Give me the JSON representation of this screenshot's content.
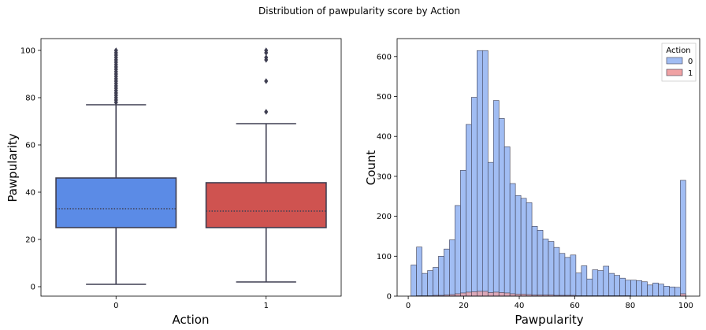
{
  "suptitle": "Distribution of pawpularity score by Action",
  "colors": {
    "box_0": "#5b8be6",
    "box_1": "#cf5350",
    "hist_0": "#a1bdf3",
    "hist_1": "#f0a2a4",
    "edge": "#3f3f52"
  },
  "chart_data": [
    {
      "type": "box",
      "xlabel": "Action",
      "ylabel": "Pawpularity",
      "categories": [
        "0",
        "1"
      ],
      "ylim": [
        -4,
        105
      ],
      "yticks": [
        0,
        20,
        40,
        60,
        80,
        100
      ],
      "boxes": [
        {
          "name": "0",
          "whisker_low": 1,
          "q1": 25,
          "median": 33,
          "q3": 46,
          "whisker_high": 77,
          "outliers": [
            78,
            79,
            80,
            81,
            82,
            83,
            84,
            85,
            86,
            87,
            88,
            89,
            90,
            91,
            92,
            93,
            94,
            95,
            96,
            97,
            98,
            99,
            100
          ]
        },
        {
          "name": "1",
          "whisker_low": 2,
          "q1": 25,
          "median": 32,
          "q3": 44,
          "whisker_high": 69,
          "outliers": [
            74,
            87,
            96,
            97,
            99,
            100
          ]
        }
      ]
    },
    {
      "type": "histogram",
      "xlabel": "Pawpularity",
      "ylabel": "Count",
      "xlim": [
        -4,
        105
      ],
      "ylim": [
        0,
        645
      ],
      "xticks": [
        0,
        20,
        40,
        60,
        80,
        100
      ],
      "yticks": [
        0,
        100,
        200,
        300,
        400,
        500,
        600
      ],
      "bin_start": 1,
      "bin_width": 1.98,
      "legend": {
        "title": "Action",
        "location": "upper right",
        "entries": [
          "0",
          "1"
        ]
      },
      "series": [
        {
          "name": "0",
          "counts": [
            78,
            123,
            57,
            64,
            72,
            100,
            118,
            141,
            227,
            315,
            430,
            498,
            615,
            615,
            335,
            490,
            445,
            374,
            282,
            252,
            245,
            234,
            175,
            165,
            143,
            137,
            122,
            107,
            97,
            103,
            58,
            76,
            43,
            66,
            64,
            75,
            57,
            52,
            45,
            40,
            40,
            39,
            36,
            28,
            33,
            30,
            25,
            23,
            22,
            290
          ]
        },
        {
          "name": "1",
          "counts": [
            0,
            1,
            1,
            1,
            2,
            2,
            3,
            4,
            6,
            8,
            10,
            11,
            12,
            12,
            9,
            10,
            9,
            8,
            6,
            5,
            5,
            4,
            3,
            3,
            3,
            3,
            2,
            2,
            2,
            2,
            1,
            1,
            1,
            1,
            1,
            1,
            1,
            1,
            1,
            1,
            0,
            0,
            0,
            0,
            0,
            0,
            0,
            0,
            0,
            6
          ]
        }
      ]
    }
  ]
}
